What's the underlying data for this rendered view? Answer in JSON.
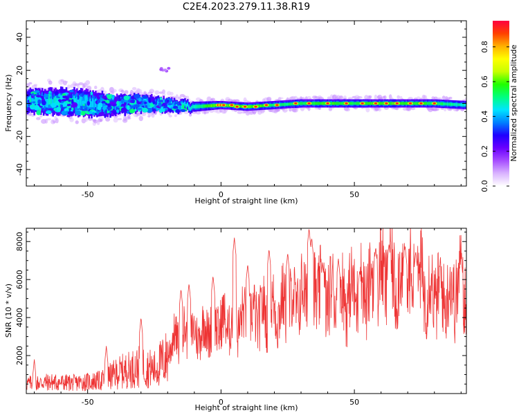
{
  "figure_title": "C2E4.2023.279.11.38.R19",
  "chart_data": [
    {
      "type": "heatmap",
      "panel": "top",
      "xlabel": "Height of straight line (km)",
      "ylabel": "Frequency (Hz)",
      "xlim": [
        -73,
        92
      ],
      "ylim": [
        -50,
        50
      ],
      "xticks": [
        -50,
        0,
        50
      ],
      "yticks": [
        -40,
        -20,
        0,
        20,
        40
      ],
      "colorbar": {
        "label": "Normalized spectral amplitude",
        "range": [
          0,
          0.95
        ],
        "ticks": [
          0.0,
          0.2,
          0.4,
          0.6,
          0.8
        ],
        "colormap": [
          "#ffffff",
          "#d9b3ff",
          "#a64dff",
          "#6a00ff",
          "#2000ff",
          "#0080ff",
          "#00e5ff",
          "#00ff80",
          "#20ff00",
          "#c8ff00",
          "#ffff00",
          "#ffb000",
          "#ff4000",
          "#ff0040"
        ]
      },
      "band_center_hz": [
        [
          -73,
          1
        ],
        [
          -60,
          1
        ],
        [
          -50,
          0
        ],
        [
          -40,
          -1
        ],
        [
          -30,
          0
        ],
        [
          -20,
          -1
        ],
        [
          -10,
          -2
        ],
        [
          0,
          -1
        ],
        [
          10,
          -2
        ],
        [
          20,
          -1
        ],
        [
          30,
          0
        ],
        [
          40,
          0
        ],
        [
          50,
          0
        ],
        [
          60,
          0
        ],
        [
          70,
          0
        ],
        [
          80,
          0
        ],
        [
          92,
          -1
        ]
      ],
      "band_halfwidth_hz": [
        [
          -73,
          7
        ],
        [
          -60,
          8
        ],
        [
          -50,
          8
        ],
        [
          -40,
          6
        ],
        [
          -30,
          5
        ],
        [
          -20,
          4
        ],
        [
          -10,
          3
        ],
        [
          0,
          2.5
        ],
        [
          20,
          2.5
        ],
        [
          50,
          2.5
        ],
        [
          92,
          2.5
        ]
      ],
      "peak_amplitude": [
        [
          -73,
          0.5
        ],
        [
          -60,
          0.55
        ],
        [
          -50,
          0.5
        ],
        [
          -40,
          0.45
        ],
        [
          -30,
          0.45
        ],
        [
          -20,
          0.5
        ],
        [
          -10,
          0.55
        ],
        [
          0,
          0.85
        ],
        [
          10,
          0.8
        ],
        [
          20,
          0.6
        ],
        [
          30,
          0.65
        ],
        [
          40,
          0.7
        ],
        [
          50,
          0.65
        ],
        [
          60,
          0.75
        ],
        [
          70,
          0.7
        ],
        [
          80,
          0.65
        ],
        [
          92,
          0.55
        ]
      ],
      "hotspots": [
        [
          -1,
          -1
        ],
        [
          0,
          -1
        ],
        [
          1,
          -1
        ],
        [
          4,
          -1
        ],
        [
          6,
          -2
        ],
        [
          9,
          -2
        ],
        [
          13,
          -2
        ],
        [
          17,
          -1
        ],
        [
          21,
          -1
        ],
        [
          28,
          0
        ],
        [
          33,
          0
        ],
        [
          40,
          0
        ],
        [
          47,
          0
        ],
        [
          53,
          0
        ],
        [
          58,
          0
        ],
        [
          62,
          0
        ],
        [
          66,
          0
        ],
        [
          71,
          0
        ],
        [
          75,
          0
        ],
        [
          80,
          0
        ]
      ],
      "isolated_patch": [
        -21,
        21
      ]
    },
    {
      "type": "line",
      "panel": "bottom",
      "xlabel": "Height of straight line (km)",
      "ylabel": "SNR (10 * v/v)",
      "xlim": [
        -73,
        92
      ],
      "ylim": [
        0,
        8700
      ],
      "xticks": [
        -50,
        0,
        50
      ],
      "yticks": [
        2000,
        4000,
        6000,
        8000
      ],
      "series": [
        {
          "color": "#ee3333",
          "envelope": [
            [
              -73,
              700
            ],
            [
              -65,
              800
            ],
            [
              -55,
              750
            ],
            [
              -45,
              900
            ],
            [
              -38,
              1500
            ],
            [
              -30,
              1900
            ],
            [
              -25,
              1700
            ],
            [
              -20,
              2600
            ],
            [
              -15,
              3400
            ],
            [
              -10,
              3300
            ],
            [
              -5,
              3700
            ],
            [
              0,
              4000
            ],
            [
              5,
              3900
            ],
            [
              10,
              4300
            ],
            [
              20,
              4700
            ],
            [
              30,
              5400
            ],
            [
              35,
              6000
            ],
            [
              40,
              5600
            ],
            [
              45,
              5500
            ],
            [
              50,
              5700
            ],
            [
              55,
              5900
            ],
            [
              60,
              6700
            ],
            [
              65,
              6600
            ],
            [
              70,
              6400
            ],
            [
              75,
              6300
            ],
            [
              80,
              5800
            ],
            [
              85,
              5600
            ],
            [
              92,
              6400
            ]
          ],
          "spikes": [
            [
              5,
              8200
            ],
            [
              18,
              7600
            ],
            [
              25,
              7400
            ],
            [
              33,
              8700
            ],
            [
              34,
              8200
            ],
            [
              38,
              6900
            ],
            [
              44,
              7100
            ],
            [
              52,
              6500
            ],
            [
              58,
              7700
            ],
            [
              63,
              7900
            ],
            [
              69,
              7800
            ],
            [
              73,
              7500
            ],
            [
              90,
              7200
            ],
            [
              -12,
              5800
            ],
            [
              -15,
              5500
            ],
            [
              -3,
              6200
            ],
            [
              10,
              6800
            ],
            [
              -30,
              4000
            ],
            [
              -43,
              2500
            ],
            [
              -70,
              1800
            ]
          ]
        }
      ]
    }
  ]
}
